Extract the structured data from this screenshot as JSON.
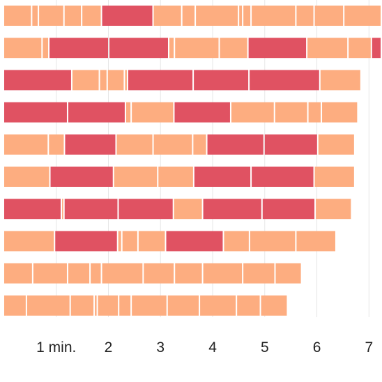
{
  "chart_data": {
    "type": "bar",
    "layout": "horizontal-stacked-segments",
    "title": "",
    "xlabel": "",
    "ylabel": "",
    "xlim": [
      0,
      7.25
    ],
    "grid": true,
    "ticks": [
      {
        "value": 1,
        "label": "1 min."
      },
      {
        "value": 2,
        "label": "2"
      },
      {
        "value": 3,
        "label": "3"
      },
      {
        "value": 4,
        "label": "4"
      },
      {
        "value": 5,
        "label": "5"
      },
      {
        "value": 6,
        "label": "6"
      },
      {
        "value": 7,
        "label": "7"
      }
    ],
    "colors": {
      "light": "#fdad80",
      "dark": "#e05262",
      "grid": "#e6e6e6"
    },
    "rows": [
      {
        "segments": [
          {
            "start": 0.0,
            "end": 0.54,
            "color": "light"
          },
          {
            "start": 0.54,
            "end": 0.67,
            "color": "light"
          },
          {
            "start": 0.67,
            "end": 1.16,
            "color": "light"
          },
          {
            "start": 1.16,
            "end": 1.5,
            "color": "light"
          },
          {
            "start": 1.5,
            "end": 1.88,
            "color": "light"
          },
          {
            "start": 1.88,
            "end": 2.87,
            "color": "dark"
          },
          {
            "start": 2.87,
            "end": 3.42,
            "color": "light"
          },
          {
            "start": 3.42,
            "end": 3.68,
            "color": "light"
          },
          {
            "start": 3.68,
            "end": 4.51,
            "color": "light"
          },
          {
            "start": 4.51,
            "end": 4.59,
            "color": "light"
          },
          {
            "start": 4.59,
            "end": 4.75,
            "color": "light"
          },
          {
            "start": 4.75,
            "end": 5.61,
            "color": "light"
          },
          {
            "start": 5.61,
            "end": 5.96,
            "color": "light"
          },
          {
            "start": 5.96,
            "end": 6.53,
            "color": "light"
          },
          {
            "start": 6.53,
            "end": 7.25,
            "color": "light"
          }
        ]
      },
      {
        "segments": [
          {
            "start": 0.0,
            "end": 0.74,
            "color": "light"
          },
          {
            "start": 0.74,
            "end": 0.87,
            "color": "light"
          },
          {
            "start": 0.87,
            "end": 2.02,
            "color": "dark"
          },
          {
            "start": 2.02,
            "end": 3.17,
            "color": "dark"
          },
          {
            "start": 3.17,
            "end": 3.28,
            "color": "light"
          },
          {
            "start": 3.28,
            "end": 4.14,
            "color": "light"
          },
          {
            "start": 4.14,
            "end": 4.69,
            "color": "light"
          },
          {
            "start": 4.69,
            "end": 5.82,
            "color": "dark"
          },
          {
            "start": 5.82,
            "end": 6.61,
            "color": "light"
          },
          {
            "start": 6.61,
            "end": 7.06,
            "color": "light"
          },
          {
            "start": 7.06,
            "end": 7.25,
            "color": "dark"
          }
        ]
      },
      {
        "segments": [
          {
            "start": 0.0,
            "end": 1.31,
            "color": "dark"
          },
          {
            "start": 1.31,
            "end": 1.84,
            "color": "light"
          },
          {
            "start": 1.84,
            "end": 1.99,
            "color": "light"
          },
          {
            "start": 1.99,
            "end": 2.32,
            "color": "light"
          },
          {
            "start": 2.32,
            "end": 2.38,
            "color": "light"
          },
          {
            "start": 2.38,
            "end": 3.64,
            "color": "dark"
          },
          {
            "start": 3.64,
            "end": 4.71,
            "color": "dark"
          },
          {
            "start": 4.71,
            "end": 6.07,
            "color": "dark"
          },
          {
            "start": 6.07,
            "end": 6.86,
            "color": "light"
          }
        ]
      },
      {
        "segments": [
          {
            "start": 0.0,
            "end": 1.23,
            "color": "dark"
          },
          {
            "start": 1.23,
            "end": 2.34,
            "color": "dark"
          },
          {
            "start": 2.34,
            "end": 2.45,
            "color": "light"
          },
          {
            "start": 2.45,
            "end": 3.27,
            "color": "light"
          },
          {
            "start": 3.27,
            "end": 4.36,
            "color": "dark"
          },
          {
            "start": 4.36,
            "end": 5.2,
            "color": "light"
          },
          {
            "start": 5.2,
            "end": 5.84,
            "color": "light"
          },
          {
            "start": 5.84,
            "end": 6.1,
            "color": "light"
          },
          {
            "start": 6.1,
            "end": 6.8,
            "color": "light"
          }
        ]
      },
      {
        "segments": [
          {
            "start": 0.0,
            "end": 0.86,
            "color": "light"
          },
          {
            "start": 0.86,
            "end": 1.17,
            "color": "light"
          },
          {
            "start": 1.17,
            "end": 2.16,
            "color": "dark"
          },
          {
            "start": 2.16,
            "end": 2.87,
            "color": "light"
          },
          {
            "start": 2.87,
            "end": 3.63,
            "color": "light"
          },
          {
            "start": 3.63,
            "end": 3.9,
            "color": "light"
          },
          {
            "start": 3.9,
            "end": 5.0,
            "color": "dark"
          },
          {
            "start": 5.0,
            "end": 6.03,
            "color": "dark"
          },
          {
            "start": 6.03,
            "end": 6.74,
            "color": "light"
          }
        ]
      },
      {
        "segments": [
          {
            "start": 0.0,
            "end": 0.89,
            "color": "light"
          },
          {
            "start": 0.89,
            "end": 2.11,
            "color": "dark"
          },
          {
            "start": 2.11,
            "end": 2.96,
            "color": "light"
          },
          {
            "start": 2.96,
            "end": 3.65,
            "color": "light"
          },
          {
            "start": 3.65,
            "end": 4.75,
            "color": "dark"
          },
          {
            "start": 4.75,
            "end": 5.96,
            "color": "dark"
          },
          {
            "start": 5.96,
            "end": 6.74,
            "color": "light"
          }
        ]
      },
      {
        "segments": [
          {
            "start": 0.0,
            "end": 1.11,
            "color": "dark"
          },
          {
            "start": 1.11,
            "end": 1.16,
            "color": "light"
          },
          {
            "start": 1.16,
            "end": 2.2,
            "color": "dark"
          },
          {
            "start": 2.2,
            "end": 3.26,
            "color": "dark"
          },
          {
            "start": 3.26,
            "end": 3.82,
            "color": "light"
          },
          {
            "start": 3.82,
            "end": 4.96,
            "color": "dark"
          },
          {
            "start": 4.96,
            "end": 5.98,
            "color": "dark"
          },
          {
            "start": 5.98,
            "end": 6.68,
            "color": "light"
          }
        ]
      },
      {
        "segments": [
          {
            "start": 0.0,
            "end": 0.98,
            "color": "light"
          },
          {
            "start": 0.98,
            "end": 2.19,
            "color": "dark"
          },
          {
            "start": 2.19,
            "end": 2.27,
            "color": "light"
          },
          {
            "start": 2.27,
            "end": 2.58,
            "color": "light"
          },
          {
            "start": 2.58,
            "end": 3.11,
            "color": "light"
          },
          {
            "start": 3.11,
            "end": 4.22,
            "color": "dark"
          },
          {
            "start": 4.22,
            "end": 4.72,
            "color": "light"
          },
          {
            "start": 4.72,
            "end": 5.61,
            "color": "light"
          },
          {
            "start": 5.61,
            "end": 6.38,
            "color": "light"
          }
        ]
      },
      {
        "segments": [
          {
            "start": 0.0,
            "end": 0.56,
            "color": "light"
          },
          {
            "start": 0.56,
            "end": 1.23,
            "color": "light"
          },
          {
            "start": 1.23,
            "end": 1.66,
            "color": "light"
          },
          {
            "start": 1.66,
            "end": 1.88,
            "color": "light"
          },
          {
            "start": 1.88,
            "end": 2.68,
            "color": "light"
          },
          {
            "start": 2.68,
            "end": 3.28,
            "color": "light"
          },
          {
            "start": 3.28,
            "end": 3.82,
            "color": "light"
          },
          {
            "start": 3.82,
            "end": 4.59,
            "color": "light"
          },
          {
            "start": 4.59,
            "end": 5.21,
            "color": "light"
          },
          {
            "start": 5.21,
            "end": 5.72,
            "color": "light"
          }
        ]
      },
      {
        "segments": [
          {
            "start": 0.0,
            "end": 0.44,
            "color": "light"
          },
          {
            "start": 0.44,
            "end": 1.28,
            "color": "light"
          },
          {
            "start": 1.28,
            "end": 1.74,
            "color": "light"
          },
          {
            "start": 1.74,
            "end": 1.8,
            "color": "light"
          },
          {
            "start": 1.8,
            "end": 2.21,
            "color": "light"
          },
          {
            "start": 2.21,
            "end": 2.45,
            "color": "light"
          },
          {
            "start": 2.45,
            "end": 3.14,
            "color": "light"
          },
          {
            "start": 3.14,
            "end": 3.76,
            "color": "light"
          },
          {
            "start": 3.76,
            "end": 4.47,
            "color": "light"
          },
          {
            "start": 4.47,
            "end": 4.93,
            "color": "light"
          },
          {
            "start": 4.93,
            "end": 5.45,
            "color": "light"
          }
        ]
      }
    ]
  }
}
